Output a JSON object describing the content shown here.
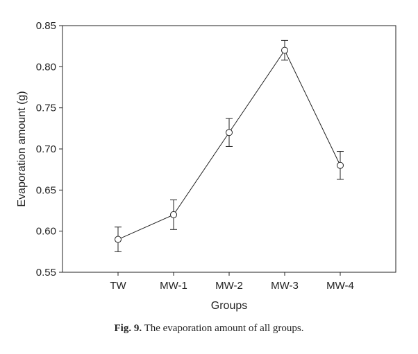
{
  "caption": {
    "label": "Fig. 9.",
    "text": "The evaporation amount of all groups."
  },
  "chart_data": {
    "type": "line",
    "title": "",
    "xlabel": "Groups",
    "ylabel": "Evaporation amount (g)",
    "categories": [
      "TW",
      "MW-1",
      "MW-2",
      "MW-3",
      "MW-4"
    ],
    "series": [
      {
        "values": [
          0.59,
          0.62,
          0.72,
          0.82,
          0.68
        ],
        "error": [
          0.015,
          0.018,
          0.017,
          0.012,
          0.017
        ],
        "marker": "open-circle"
      }
    ],
    "ylim": [
      0.55,
      0.85
    ],
    "yticks": [
      "0.55",
      "0.60",
      "0.65",
      "0.70",
      "0.75",
      "0.80",
      "0.85"
    ],
    "grid": false,
    "legend": "none"
  }
}
